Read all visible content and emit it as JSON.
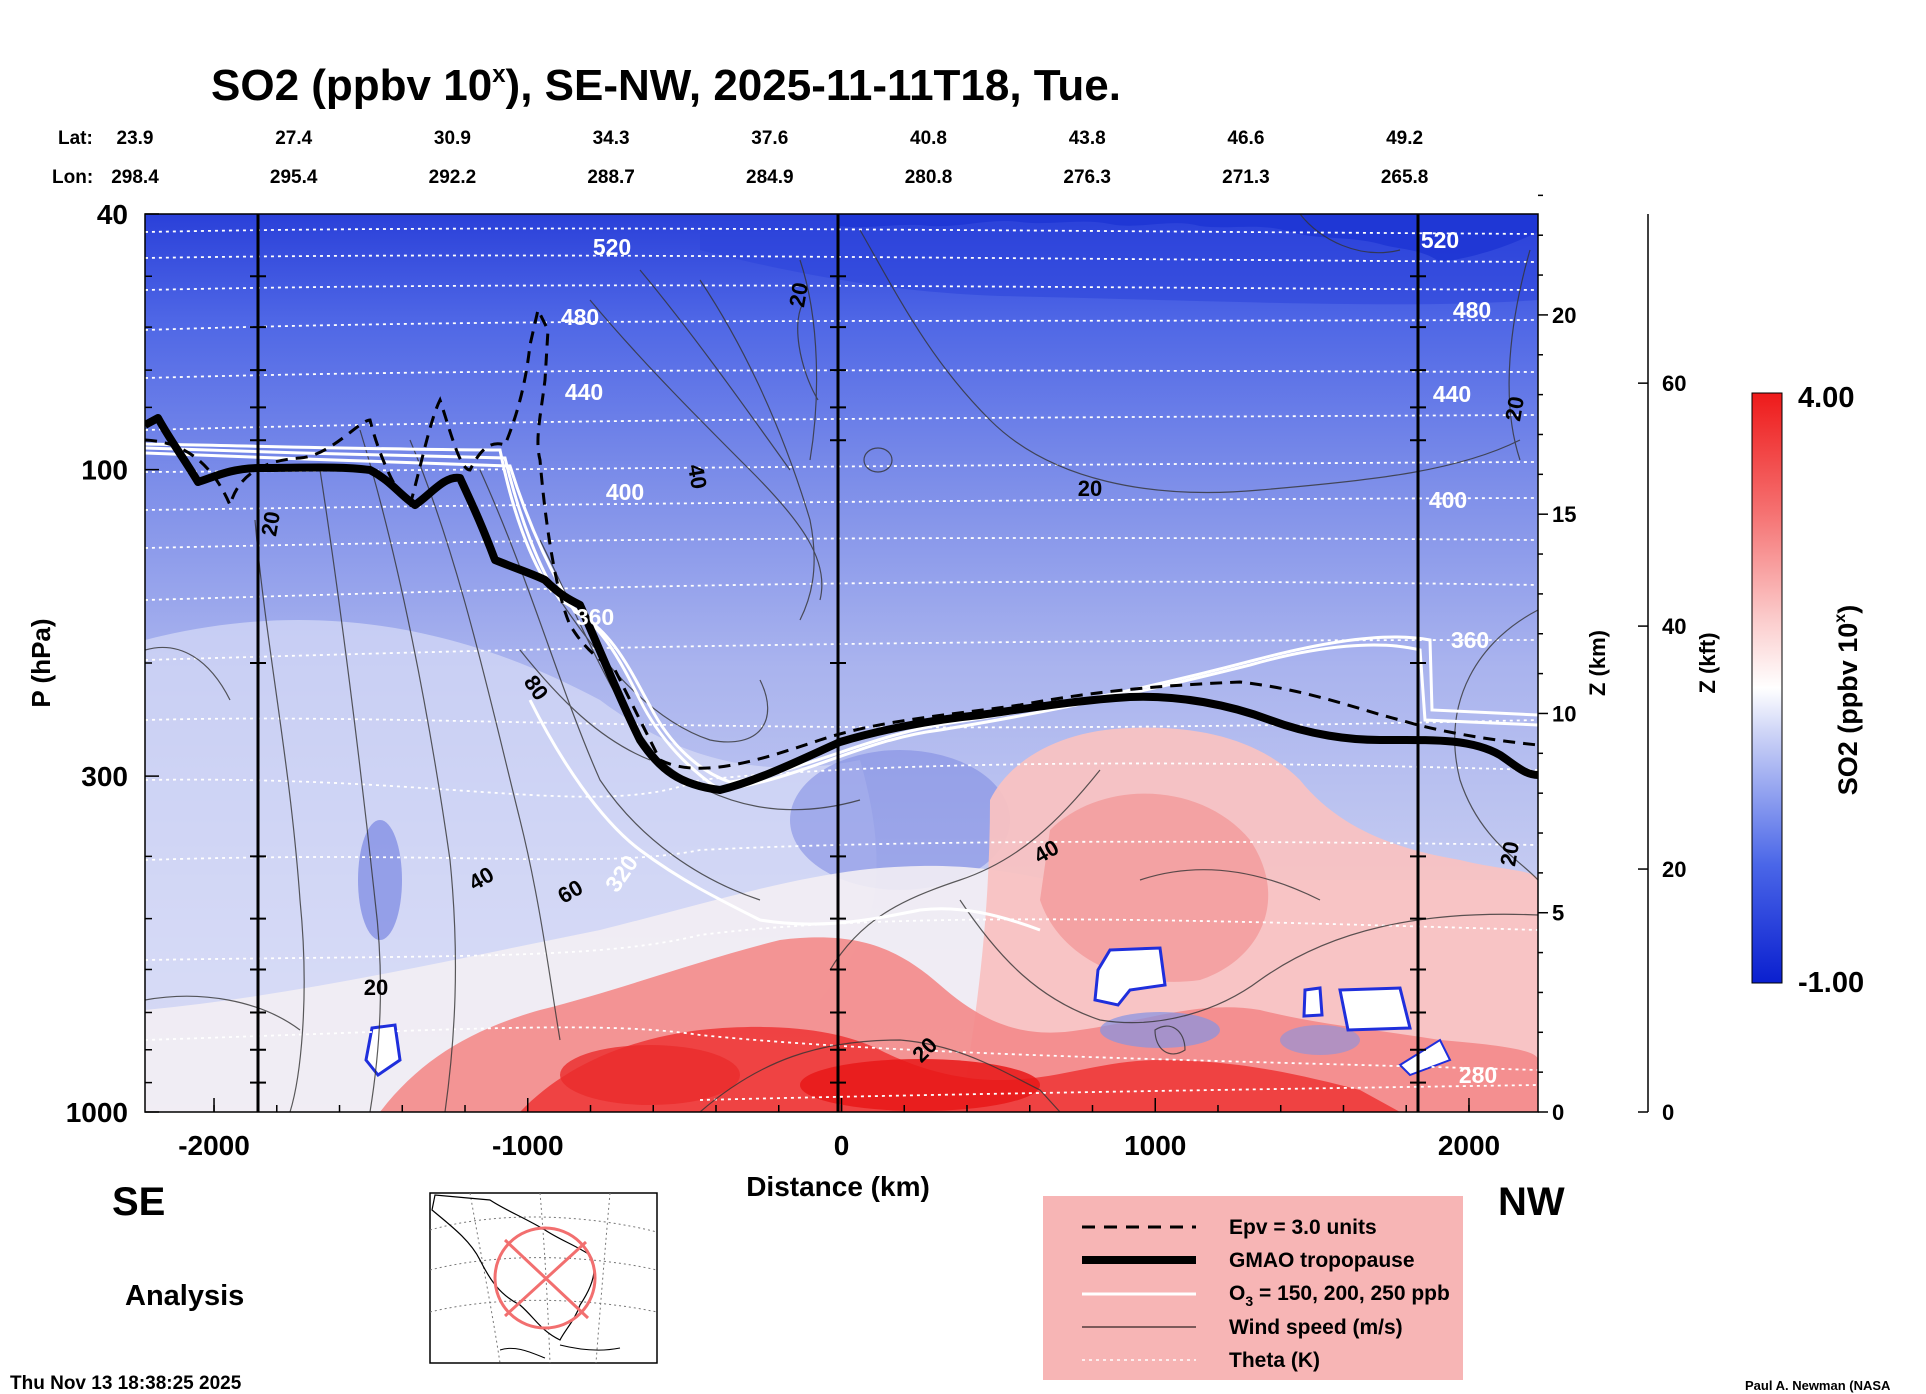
{
  "chart_data": {
    "type": "heatmap",
    "title": "SO2 (ppbv 10",
    "title_sup": "x",
    "title_rest": "), SE-NW, 2025-11-11T18, Tue.",
    "xlabel": "Distance (km)",
    "ylabel": "P (hPa)",
    "y2label": "Z (km)",
    "y3label": "Z (kft)",
    "x_ticks": [
      "-2000",
      "-1000",
      "0",
      "1000",
      "2000"
    ],
    "x_range": [
      -2220,
      2220
    ],
    "p_ticks": [
      "40",
      "100",
      "300",
      "1000"
    ],
    "p_range": [
      1000,
      40
    ],
    "z_km_ticks": [
      "0",
      "5",
      "10",
      "15",
      "20"
    ],
    "z_kft_ticks": [
      "0",
      "20",
      "40",
      "60"
    ],
    "lat_label": "Lat:",
    "lon_label": "Lon:",
    "lat_values": [
      "23.9",
      "27.4",
      "30.9",
      "34.3",
      "37.6",
      "40.8",
      "43.8",
      "46.6",
      "49.2"
    ],
    "lon_values": [
      "298.4",
      "295.4",
      "292.2",
      "288.7",
      "284.9",
      "280.8",
      "276.3",
      "271.3",
      "265.8"
    ],
    "colorbar": {
      "label": "SO2 (ppbv 10",
      "label_sup": "x",
      "label_end": ")",
      "max_label": "4.00",
      "min_label": "-1.00",
      "range": [
        -1.0,
        4.0
      ],
      "low_color": "#0a1fcf",
      "mid_color": "#ffffff",
      "high_color": "#ee1a1a"
    },
    "theta_labels": [
      "520",
      "480",
      "440",
      "400",
      "360",
      "320",
      "280"
    ],
    "wind_labels": [
      "20",
      "40",
      "60",
      "80"
    ],
    "left_label": "SE",
    "right_label": "NW",
    "analysis_label": "Analysis",
    "timestamp": "Thu Nov 13 18:38:25 2025",
    "credit": "Paul A. Newman (NASA",
    "legend": {
      "bg": "#f7b5b5",
      "epv": "Epv = 3.0 units",
      "tropopause": "GMAO tropopause",
      "o3_prefix": "O",
      "o3_sub": "3",
      "o3_rest": " = 150, 200, 250 ppb",
      "wind": "Wind speed (m/s)",
      "theta": "Theta (K)"
    }
  }
}
